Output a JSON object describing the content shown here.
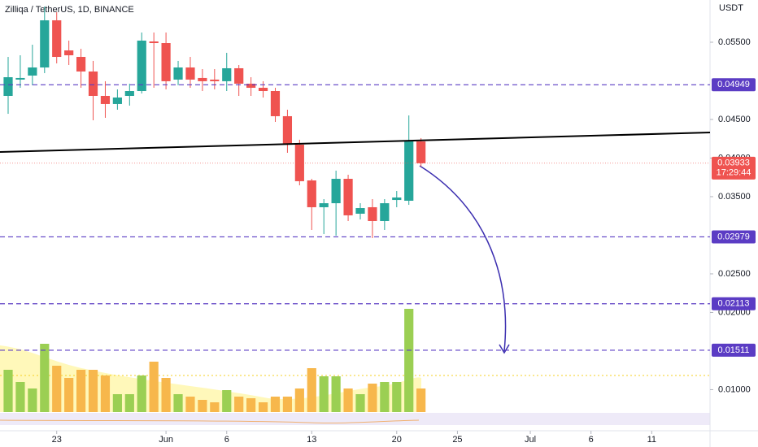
{
  "chart_data": {
    "type": "candlestick",
    "title": "Zilliqa / TetherUS, 1D, BINANCE",
    "y_axis_label": "USDT",
    "open": [
      0.04805,
      0.05016,
      0.05068,
      0.05173,
      0.05784,
      0.05394,
      0.0531,
      0.05121,
      0.04805,
      0.047,
      0.04805,
      0.04868,
      0.0551,
      0.05489,
      0.05016,
      0.05173,
      0.05037,
      0.05016,
      0.04995,
      0.05163,
      0.04963,
      0.0491,
      0.04868,
      0.04542,
      0.04173,
      0.0371,
      0.03363,
      0.03415,
      0.03731,
      0.03279,
      0.03363,
      0.03184,
      0.03457,
      0.03447,
      0.04215
    ],
    "high": [
      0.0531,
      0.05331,
      0.05468,
      0.05963,
      0.05889,
      0.05521,
      0.05415,
      0.05258,
      0.04995,
      0.04889,
      0.04963,
      0.05626,
      0.05626,
      0.05626,
      0.05258,
      0.0531,
      0.05152,
      0.05152,
      0.05363,
      0.05205,
      0.05047,
      0.04995,
      0.0491,
      0.04626,
      0.04237,
      0.03731,
      0.03468,
      0.03837,
      0.03784,
      0.03415,
      0.03468,
      0.03468,
      0.03573,
      0.04552,
      0.04258
    ],
    "low": [
      0.04573,
      0.0491,
      0.04942,
      0.051,
      0.05226,
      0.05205,
      0.0491,
      0.04489,
      0.04521,
      0.04626,
      0.04679,
      0.04836,
      0.0491,
      0.04889,
      0.04942,
      0.0491,
      0.04868,
      0.04889,
      0.04868,
      0.04805,
      0.04805,
      0.04784,
      0.04468,
      0.04068,
      0.03647,
      0.03068,
      0.03015,
      0.02994,
      0.03184,
      0.03205,
      0.02963,
      0.03068,
      0.03363,
      0.03394,
      0.03889
    ],
    "close": [
      0.05047,
      0.05037,
      0.05173,
      0.05784,
      0.0531,
      0.05331,
      0.05121,
      0.04805,
      0.047,
      0.04784,
      0.04868,
      0.05521,
      0.05489,
      0.04995,
      0.05173,
      0.05016,
      0.04995,
      0.04995,
      0.05163,
      0.04963,
      0.0491,
      0.04868,
      0.04542,
      0.04173,
      0.037,
      0.03363,
      0.03415,
      0.03731,
      0.03258,
      0.03352,
      0.03184,
      0.03415,
      0.03489,
      0.04215,
      0.03933
    ],
    "up_color": "#26a69a",
    "down_color": "#ef5350",
    "volume": [
      52,
      37,
      29,
      84,
      57,
      42,
      52,
      52,
      45,
      22,
      22,
      45,
      62,
      42,
      22,
      19,
      15,
      12,
      27,
      19,
      17,
      12,
      19,
      19,
      29,
      54,
      44,
      44,
      29,
      22,
      35,
      37,
      37,
      127,
      29
    ],
    "volume_ylim": [
      0,
      130
    ],
    "volume_up_color": "#9bcf53",
    "volume_down_color": "#f7b74c",
    "xlim": [
      -0.67,
      57.8
    ],
    "xticks": [
      {
        "value": 4,
        "label": "23"
      },
      {
        "value": 13,
        "label": "Jun"
      },
      {
        "value": 18,
        "label": "6"
      },
      {
        "value": 25,
        "label": "13"
      },
      {
        "value": 32,
        "label": "20"
      },
      {
        "value": 37,
        "label": "25"
      },
      {
        "value": 43,
        "label": "Jul"
      },
      {
        "value": 48,
        "label": "6"
      },
      {
        "value": 53,
        "label": "11"
      }
    ],
    "ylim": [
      0.00468,
      0.06047
    ],
    "yticks": [
      {
        "value": 0.055,
        "label": "0.05500"
      },
      {
        "value": 0.045,
        "label": "0.04500"
      },
      {
        "value": 0.04,
        "label": "0.04000"
      },
      {
        "value": 0.035,
        "label": "0.03500"
      },
      {
        "value": 0.025,
        "label": "0.02500"
      },
      {
        "value": 0.02,
        "label": "0.02000"
      },
      {
        "value": 0.01,
        "label": "0.01000"
      }
    ],
    "levels": [
      0.04949,
      0.02979,
      0.02113,
      0.01511
    ],
    "level_color": "#5b3cc4",
    "last_price": 0.03933,
    "countdown": "17:29:44",
    "trendline": {
      "x": [
        -0.67,
        57.8
      ],
      "y": [
        0.04079,
        0.04331
      ]
    }
  }
}
